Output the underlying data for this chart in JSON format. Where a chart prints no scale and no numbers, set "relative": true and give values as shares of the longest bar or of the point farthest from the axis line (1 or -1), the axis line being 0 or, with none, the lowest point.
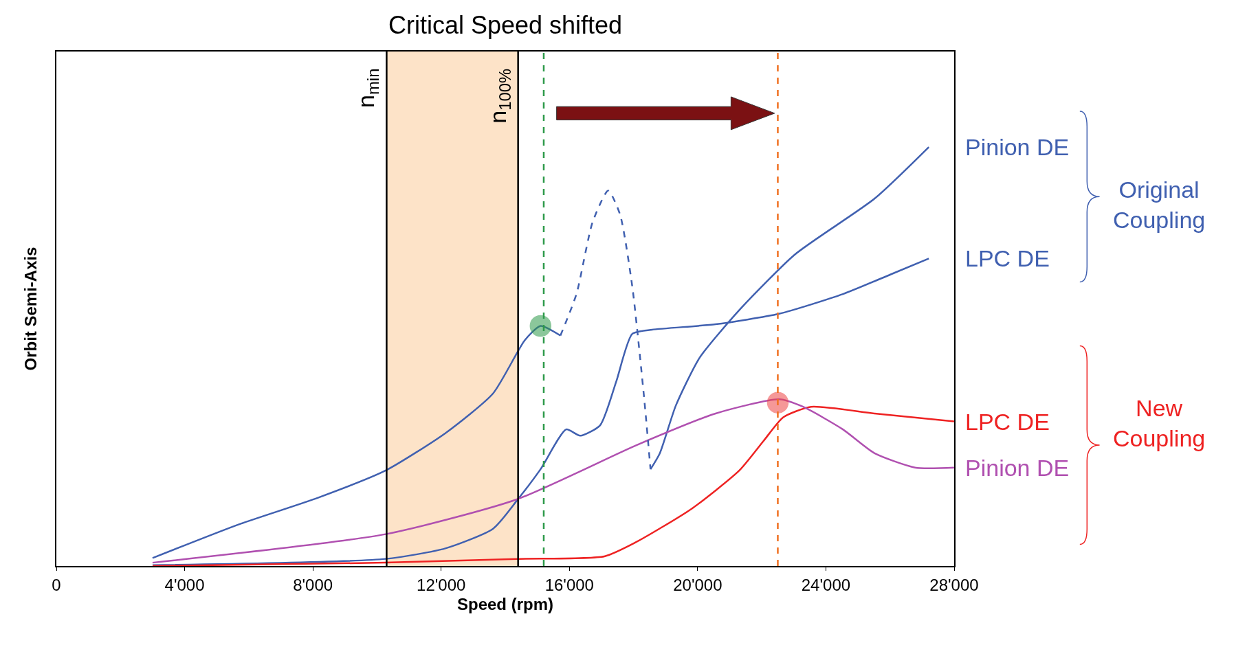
{
  "chart_data": {
    "type": "line",
    "title": "Critical Speed shifted",
    "xlabel": "Speed (rpm)",
    "ylabel": "Orbit Semi-Axis",
    "relative": true,
    "grid": false,
    "xlim": [
      0,
      28000
    ],
    "xticks": [
      0,
      {
        "value": 4000,
        "label": "4'000"
      },
      {
        "value": 8000,
        "label": "8'000"
      },
      {
        "value": 12000,
        "label": "12'000"
      },
      {
        "value": 16000,
        "label": "16'000"
      },
      {
        "value": 20000,
        "label": "20'000"
      },
      {
        "value": 24000,
        "label": "24'000"
      },
      {
        "value": 28000,
        "label": "28'000"
      }
    ],
    "series": [
      {
        "name": "Pinion DE",
        "color": "#4060b0",
        "line_style": "solid",
        "x": [
          3000,
          5680,
          8160,
          10270,
          12130,
          13620,
          14610,
          15100,
          15720,
          16220,
          16720,
          17210,
          17580,
          17960,
          18330,
          18530,
          18820,
          19320,
          20060,
          21300,
          23040,
          25520,
          27210
        ],
        "values": [
          0.019,
          0.099,
          0.163,
          0.228,
          0.317,
          0.412,
          0.539,
          0.573,
          0.55,
          null,
          null,
          null,
          null,
          null,
          null,
          0.231,
          0.269,
          0.383,
          0.497,
          0.611,
          0.744,
          0.877,
          1.0
        ]
      },
      {
        "name": "LPC DE",
        "color": "#4060b0",
        "line_style": "solid",
        "x": [
          3000,
          10270,
          12130,
          13620,
          14360,
          15100,
          15900,
          16340,
          16960,
          17460,
          17960,
          18580,
          20560,
          22540,
          24530,
          26020,
          27210
        ],
        "values": [
          0.002,
          0.017,
          0.042,
          0.089,
          0.156,
          0.231,
          0.326,
          0.311,
          0.336,
          0.44,
          0.554,
          0.564,
          0.577,
          0.602,
          0.649,
          0.696,
          0.734
        ]
      },
      {
        "name": "LPC DE",
        "color": "#ee2222",
        "line_style": "solid",
        "x": [
          3000,
          10270,
          14360,
          17090,
          18080,
          19820,
          21300,
          22050,
          22670,
          23540,
          25520,
          28000
        ],
        "values": [
          0,
          0.008,
          0.017,
          0.023,
          0.057,
          0.137,
          0.228,
          0.298,
          0.355,
          0.38,
          0.364,
          0.345
        ]
      },
      {
        "name": "Pinion DE",
        "color": "#b050b0",
        "line_style": "solid",
        "x": [
          3000,
          10270,
          14360,
          18080,
          20560,
          22540,
          23290,
          24530,
          25520,
          26780,
          28000
        ],
        "values": [
          0.008,
          0.076,
          0.159,
          0.288,
          0.364,
          0.398,
          0.38,
          0.326,
          0.269,
          0.235,
          0.235
        ]
      },
      {
        "color": "#4060b0",
        "line_style": "dashed",
        "x": [
          15720,
          16220,
          16720,
          17210,
          17580,
          17960,
          18330,
          18530
        ],
        "values": [
          0.55,
          0.649,
          0.82,
          0.896,
          0.839,
          0.668,
          0.402,
          0.231
        ]
      },
      {
        "type": "scatter",
        "marker": "circle",
        "color": "#2e9a4a",
        "x": [
          15100
        ],
        "values": [
          0.573
        ]
      },
      {
        "type": "scatter",
        "marker": "circle",
        "color": "#ee4444",
        "x": [
          22500
        ],
        "values": [
          0.39
        ]
      }
    ],
    "ref_lines": [
      {
        "axis": "x",
        "value": 10300,
        "label": "n$_{min}$",
        "color": "#000000",
        "line_style": "solid"
      },
      {
        "axis": "x",
        "value": 14400,
        "label": "n$_{100%}$",
        "color": "#000000",
        "line_style": "solid"
      },
      {
        "axis": "x",
        "value": 15200,
        "color": "#2e9a4a",
        "line_style": "dashed"
      },
      {
        "axis": "x",
        "value": 22500,
        "color": "#f07020",
        "line_style": "dashed"
      }
    ],
    "bands": [
      {
        "axis": "x",
        "from": 10300,
        "to": 14400,
        "color": "#fde3c8"
      }
    ],
    "annotations": [
      "Original\nCoupling",
      "New\nCoupling"
    ]
  }
}
